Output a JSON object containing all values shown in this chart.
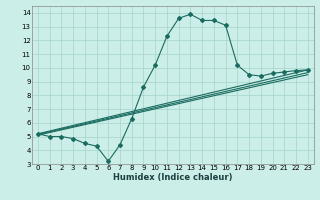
{
  "title": "",
  "xlabel": "Humidex (Indice chaleur)",
  "ylabel": "",
  "bg_color": "#cceee8",
  "grid_color": "#aad8d0",
  "line_color": "#1a6b60",
  "xlim": [
    -0.5,
    23.5
  ],
  "ylim": [
    3,
    14.5
  ],
  "xticks": [
    0,
    1,
    2,
    3,
    4,
    5,
    6,
    7,
    8,
    9,
    10,
    11,
    12,
    13,
    14,
    15,
    16,
    17,
    18,
    19,
    20,
    21,
    22,
    23
  ],
  "yticks": [
    3,
    4,
    5,
    6,
    7,
    8,
    9,
    10,
    11,
    12,
    13,
    14
  ],
  "line1_x": [
    0,
    1,
    2,
    3,
    4,
    5,
    6,
    7,
    8,
    9,
    10,
    11,
    12,
    13,
    14,
    15,
    16,
    17,
    18,
    19,
    20,
    21,
    22,
    23
  ],
  "line1_y": [
    5.2,
    5.0,
    5.0,
    4.85,
    4.5,
    4.3,
    3.2,
    4.4,
    6.3,
    8.6,
    10.2,
    12.3,
    13.6,
    13.9,
    13.45,
    13.45,
    13.1,
    10.2,
    9.5,
    9.4,
    9.6,
    9.7,
    9.8,
    9.85
  ],
  "line2_x": [
    0,
    23
  ],
  "line2_y": [
    5.2,
    9.85
  ],
  "line3_x": [
    0,
    23
  ],
  "line3_y": [
    5.1,
    9.5
  ],
  "line4_x": [
    0,
    23
  ],
  "line4_y": [
    5.15,
    9.65
  ],
  "xlabel_fontsize": 6.0,
  "tick_fontsize": 5.0
}
